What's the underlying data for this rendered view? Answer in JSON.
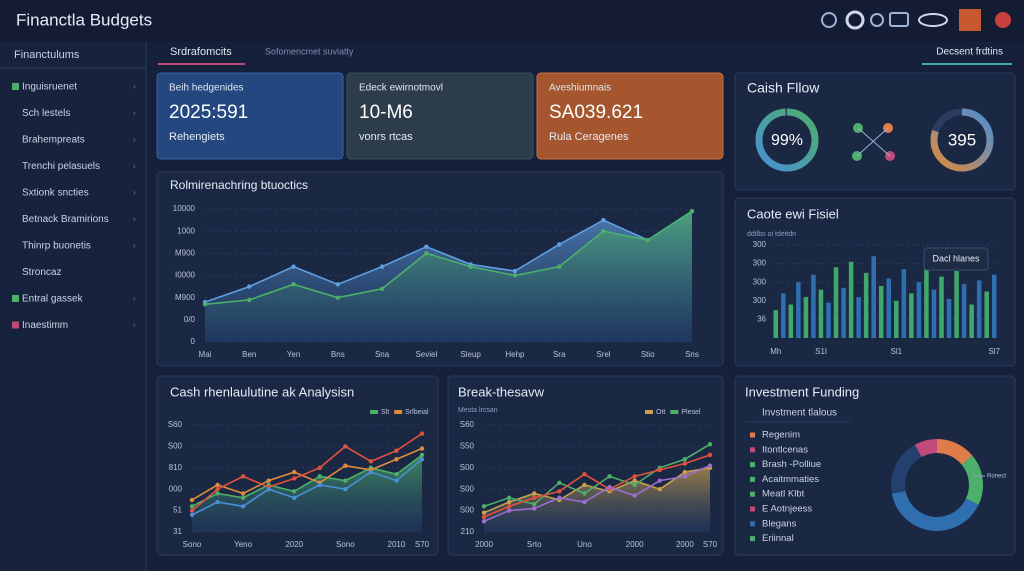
{
  "header": {
    "title": "Financtla Budgets"
  },
  "sidebar": {
    "title": "Financtulums",
    "items": [
      "Inguisruenet",
      "Sch lestels",
      "Brahempreats",
      "Trenchi pelasuels",
      "Sxtionk sncties",
      "Betnack Bramirions",
      "Thinrp buonetis",
      "Stroncaz",
      "Entral gassek",
      "Inaestimm"
    ]
  },
  "tabs": [
    "Srdrafomcits",
    "Sofomencmet suviatty",
    "Decsent frdtins"
  ],
  "kpis": [
    {
      "title": "Beih hedgenides",
      "value": "2025:591",
      "subtitle": "Rehengiets"
    },
    {
      "title": "Edeck ewirnotmovl",
      "value": "10-M6",
      "subtitle": "vonrs rtcas"
    },
    {
      "title": "Aveshiumnais",
      "value": "SA039.621",
      "subtitle": "Rula Ceragenes"
    }
  ],
  "cash_flow": {
    "title": "Caish Fllow",
    "gauge": {
      "value": 99,
      "value_label": "99%"
    },
    "second_label": "395"
  },
  "area_chart": {
    "type": "area",
    "title": "Rolmirenachring btuoctics",
    "categories": [
      "Mai",
      "Ben",
      "Yen",
      "Bns",
      "Sna",
      "Seviel",
      "Sleup",
      "Hehp",
      "Sra",
      "Srel",
      "Stio",
      "Sns"
    ],
    "series": [
      {
        "color": "#5f9fe0",
        "values": [
          1.8,
          2.5,
          3.4,
          2.6,
          3.4,
          4.3,
          3.5,
          3.2,
          4.4,
          5.5,
          4.6,
          5.9
        ]
      },
      {
        "color": "#4caf6a",
        "values": [
          1.7,
          1.9,
          2.6,
          2.0,
          2.4,
          4.0,
          3.4,
          3.0,
          3.4,
          5.0,
          4.6,
          5.9
        ]
      }
    ],
    "ylim": [
      0,
      6
    ],
    "yticks": [
      0,
      {
        "value": 1,
        "label": "0/0"
      },
      {
        "value": 2,
        "label": "M900"
      },
      {
        "value": 3,
        "label": "I0000"
      },
      {
        "value": 4,
        "label": "M900"
      },
      {
        "value": 5,
        "label": "1000"
      },
      {
        "value": 6,
        "label": "10000"
      }
    ]
  },
  "bar_chart": {
    "type": "bar",
    "title": "Caote ewi Fisiel",
    "subtitle": "ddtlbs oi tdeitdn",
    "tooltip": "Dacl hlanes",
    "categories": [
      "Mh",
      null,
      null,
      null,
      null,
      null,
      "S1l",
      null,
      null,
      null,
      null,
      null,
      null,
      null,
      null,
      null,
      "Sl1",
      null,
      null,
      null,
      null,
      null,
      null,
      null,
      null,
      null,
      null,
      null,
      null,
      "Sl7"
    ],
    "values": [
      1.5,
      2.4,
      1.8,
      3.0,
      2.2,
      3.4,
      2.6,
      1.9,
      3.8,
      2.7,
      4.1,
      2.2,
      3.5,
      4.4,
      2.8,
      3.2,
      2.0,
      3.7,
      2.4,
      3.0,
      4.2,
      2.6,
      3.3,
      2.1,
      3.6,
      2.9,
      1.8,
      3.1,
      2.5,
      3.4
    ],
    "colors": [
      "#3fa86a",
      "#2f6fb0"
    ],
    "ylim": [
      0,
      5
    ],
    "yticks": [
      {
        "value": 1,
        "label": "36"
      },
      {
        "value": 2,
        "label": "300"
      },
      {
        "value": 3,
        "label": "300"
      },
      {
        "value": 4,
        "label": "300"
      },
      {
        "value": 5,
        "label": "300"
      }
    ]
  },
  "line_chart_1": {
    "type": "line",
    "title": "Cash rhenlaulutine ak Analysisn",
    "categories": [
      "Sono",
      null,
      "Yeno",
      null,
      "2020",
      null,
      "Sono",
      null,
      "2010",
      "S70"
    ],
    "series": [
      {
        "name": "Slt",
        "color": "#4caf6a",
        "fill": true,
        "values": [
          1.2,
          1.8,
          1.6,
          2.2,
          1.9,
          2.6,
          2.4,
          3.0,
          2.7,
          3.6
        ]
      },
      {
        "name": "Srlbeial",
        "color": "#e08a3c",
        "values": [
          1.5,
          2.2,
          1.8,
          2.4,
          2.8,
          2.3,
          3.1,
          2.9,
          3.4,
          3.9
        ]
      },
      {
        "color": "#e0523c",
        "values": [
          1.0,
          2.0,
          2.6,
          2.1,
          2.5,
          3.0,
          4.0,
          3.3,
          3.8,
          4.6
        ]
      },
      {
        "color": "#4a8fd8",
        "values": [
          0.8,
          1.4,
          1.2,
          2.0,
          1.6,
          2.2,
          2.0,
          2.8,
          2.4,
          3.4
        ]
      }
    ],
    "ylim": [
      0,
      5
    ],
    "yticks": [
      {
        "value": 0,
        "label": "31"
      },
      {
        "value": 1,
        "label": "51"
      },
      {
        "value": 2,
        "label": "000"
      },
      {
        "value": 3,
        "label": "810"
      },
      {
        "value": 4,
        "label": "S00"
      },
      {
        "value": 5,
        "label": "S60"
      }
    ]
  },
  "line_chart_2": {
    "type": "line",
    "title": "Break-thesavw",
    "subtitle": "Mesta lrcsan",
    "categories": [
      "2000",
      null,
      "Srto",
      null,
      "Uno",
      null,
      "2000",
      null,
      "2000",
      "S70"
    ],
    "series": [
      {
        "name": "Ott",
        "color": "#c9a04a",
        "fill": true,
        "values": [
          0.9,
          1.4,
          1.8,
          1.5,
          2.2,
          1.9,
          2.4,
          2.0,
          2.8,
          3.0
        ]
      },
      {
        "name": "Plesel",
        "color": "#4caf6a",
        "values": [
          1.2,
          1.6,
          1.3,
          2.3,
          1.8,
          2.6,
          2.2,
          3.0,
          3.4,
          4.1
        ]
      },
      {
        "color": "#e0523c",
        "values": [
          0.7,
          1.2,
          1.6,
          1.9,
          2.7,
          2.0,
          2.6,
          2.9,
          3.2,
          3.6
        ]
      },
      {
        "color": "#9b6fd0",
        "values": [
          0.5,
          1.0,
          1.1,
          1.6,
          1.4,
          2.1,
          1.7,
          2.4,
          2.6,
          3.1
        ]
      }
    ],
    "ylim": [
      0,
      5
    ],
    "yticks": [
      {
        "value": 0,
        "label": "210"
      },
      {
        "value": 1,
        "label": "S00"
      },
      {
        "value": 2,
        "label": "S00"
      },
      {
        "value": 3,
        "label": "S00"
      },
      {
        "value": 4,
        "label": "S50"
      },
      {
        "value": 5,
        "label": "S60"
      }
    ]
  },
  "investment": {
    "type": "pie",
    "title": "Investment Funding",
    "subtitle": "Invstment tlalous",
    "legend_label": "Ronect",
    "items": [
      "Regenim",
      "Itontlcenas",
      "Brash -Polliue",
      "Acaitmmaties",
      "Meatl Klbt",
      "E Aotnjeess",
      "Blegans",
      "Eriinnal"
    ],
    "item_colors": [
      "#e07b4a",
      "#c04a7a",
      "#4caf6a",
      "#4caf6a",
      "#4caf6a",
      "#c04a7a",
      "#2f6fb0",
      "#4caf6a"
    ],
    "values": [
      14,
      18,
      40,
      20,
      8
    ],
    "colors": [
      "#e07b4a",
      "#4caf6a",
      "#2f6fb0",
      "#23406e",
      "#c04a7a"
    ]
  }
}
